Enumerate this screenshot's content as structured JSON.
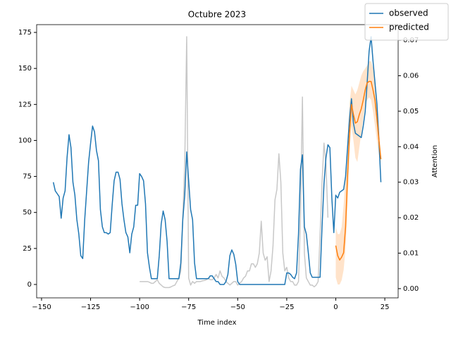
{
  "chart_data": {
    "type": "line",
    "title": "Octubre 2023",
    "xlabel": "Time index",
    "y2label": "Attention",
    "xlim": [
      -152.5,
      31.8
    ],
    "ylim": [
      -9.3,
      180.4
    ],
    "y2lim": [
      -0.0026,
      0.0744
    ],
    "xticks": [
      {
        "value": -150,
        "label": "−150"
      },
      {
        "value": -125,
        "label": "−125"
      },
      {
        "value": -100,
        "label": "−100"
      },
      {
        "value": -75,
        "label": "−75"
      },
      {
        "value": -50,
        "label": "−50"
      },
      {
        "value": -25,
        "label": "−25"
      },
      0,
      25
    ],
    "yticks": [
      0,
      25,
      50,
      75,
      100,
      125,
      150,
      175
    ],
    "y2ticks": [
      {
        "value": 0,
        "label": "0.00"
      },
      {
        "value": 0.01,
        "label": "0.01"
      },
      {
        "value": 0.02,
        "label": "0.02"
      },
      {
        "value": 0.03,
        "label": "0.03"
      },
      {
        "value": 0.04,
        "label": "0.04"
      },
      {
        "value": 0.05,
        "label": "0.05"
      },
      {
        "value": 0.06,
        "label": "0.06"
      },
      {
        "value": 0.07,
        "label": "0.07"
      }
    ],
    "legend": "upper right",
    "attention": {
      "axis": "y2",
      "color": "#c8c8c8",
      "x": [
        -100,
        -99,
        -98,
        -97,
        -96,
        -95,
        -94,
        -93,
        -92,
        -91,
        -90,
        -89,
        -88,
        -87,
        -86,
        -85,
        -84,
        -83,
        -82,
        -81,
        -80,
        -79,
        -78,
        -77,
        -76,
        -75,
        -74,
        -73,
        -72,
        -71,
        -70,
        -69,
        -68,
        -67,
        -66,
        -65,
        -64,
        -63,
        -62,
        -61,
        -60,
        -59,
        -58,
        -57,
        -56,
        -55,
        -54,
        -53,
        -52,
        -51,
        -50,
        -49,
        -48,
        -47,
        -46,
        -45,
        -44,
        -43,
        -42,
        -41,
        -40,
        -39,
        -38,
        -37,
        -36,
        -35,
        -34,
        -33,
        -32,
        -31,
        -30,
        -29,
        -28,
        -27,
        -26,
        -25,
        -24,
        -23,
        -22,
        -21,
        -20,
        -19,
        -18,
        -17,
        -16,
        -15,
        -14,
        -13,
        -12,
        -11,
        -10,
        -9,
        -8,
        -7,
        -6,
        -5,
        -4
      ],
      "values": [
        0.002,
        0.002,
        0.002,
        0.002,
        0.002,
        0.0018,
        0.0015,
        0.0015,
        0.002,
        0.0025,
        0.0015,
        0.001,
        0.0005,
        0.0003,
        0.0003,
        0.0003,
        0.0005,
        0.0008,
        0.001,
        0.002,
        0.003,
        0.005,
        0.02,
        0.035,
        0.071,
        0.003,
        0.001,
        0.002,
        0.0015,
        0.002,
        0.002,
        0.002,
        0.0022,
        0.0023,
        0.0025,
        0.003,
        0.0025,
        0.0025,
        0.003,
        0.004,
        0.003,
        0.005,
        0.0035,
        0.003,
        0.002,
        0.0015,
        0.001,
        0.0015,
        0.002,
        0.002,
        0.001,
        0.0015,
        0.002,
        0.003,
        0.0035,
        0.005,
        0.005,
        0.007,
        0.007,
        0.006,
        0.007,
        0.01,
        0.019,
        0.01,
        0.008,
        0.009,
        0.002,
        0.005,
        0.012,
        0.025,
        0.028,
        0.038,
        0.03,
        0.01,
        0.005,
        0.006,
        0.003,
        0.002,
        0.002,
        0.001,
        0.001,
        0.002,
        0.02,
        0.054,
        0.01,
        0.003,
        0.002,
        0.001,
        0.001,
        0.0005,
        0.001,
        0.002,
        0.015,
        0.03,
        0.041,
        0.035,
        0.02
      ]
    },
    "series": [
      {
        "name": "observed",
        "color": "#1f77b4",
        "x": [
          -144,
          -143,
          -142,
          -141,
          -140,
          -139,
          -138,
          -137,
          -136,
          -135,
          -134,
          -133,
          -132,
          -131,
          -130,
          -129,
          -128,
          -127,
          -126,
          -125,
          -124,
          -123,
          -122,
          -121,
          -120,
          -119,
          -118,
          -117,
          -116,
          -115,
          -114,
          -113,
          -112,
          -111,
          -110,
          -109,
          -108,
          -107,
          -106,
          -105,
          -104,
          -103,
          -102,
          -101,
          -100,
          -99,
          -98,
          -97,
          -96,
          -95,
          -94,
          -93,
          -92,
          -91,
          -90,
          -89,
          -88,
          -87,
          -86,
          -85,
          -84,
          -83,
          -82,
          -81,
          -80,
          -79,
          -78,
          -77,
          -76,
          -75,
          -74,
          -73,
          -72,
          -71,
          -70,
          -69,
          -68,
          -67,
          -66,
          -65,
          -64,
          -63,
          -62,
          -61,
          -60,
          -59,
          -58,
          -57,
          -56,
          -55,
          -54,
          -53,
          -52,
          -51,
          -50,
          -49,
          -48,
          -47,
          -46,
          -45,
          -44,
          -43,
          -42,
          -41,
          -40,
          -39,
          -38,
          -37,
          -36,
          -35,
          -34,
          -33,
          -32,
          -31,
          -30,
          -29,
          -28,
          -27,
          -26,
          -25,
          -24,
          -23,
          -22,
          -21,
          -20,
          -19,
          -18,
          -17,
          -16,
          -15,
          -14,
          -13,
          -12,
          -11,
          -10,
          -9,
          -8,
          -7,
          -6,
          -5,
          -4,
          -3,
          -2,
          -1,
          0,
          1,
          2,
          3,
          4,
          5,
          6,
          7,
          8,
          9,
          10,
          11,
          12,
          13,
          14,
          15,
          16,
          17,
          18,
          19,
          20,
          21,
          22,
          23
        ],
        "values": [
          71,
          65,
          63,
          61,
          46,
          60,
          65,
          88,
          104,
          95,
          71,
          62,
          45,
          35,
          20,
          18,
          45,
          65,
          85,
          98,
          110,
          106,
          93,
          86,
          52,
          40,
          36,
          36,
          35,
          36,
          55,
          72,
          78,
          78,
          73,
          56,
          45,
          36,
          33,
          22,
          35,
          40,
          55,
          55,
          77,
          75,
          72,
          56,
          22,
          12,
          4,
          4,
          4,
          4,
          20,
          42,
          51,
          45,
          30,
          4,
          4,
          4,
          4,
          4,
          4,
          15,
          45,
          62,
          92,
          72,
          52,
          45,
          15,
          4,
          4,
          4,
          4,
          4,
          4,
          4,
          6,
          6,
          4,
          2,
          2,
          0,
          0,
          0,
          2,
          7,
          20,
          24,
          21,
          14,
          2,
          0,
          0,
          0,
          0,
          0,
          0,
          0,
          0,
          0,
          0,
          0,
          0,
          0,
          0,
          0,
          0,
          0,
          0,
          0,
          0,
          0,
          0,
          0,
          0,
          8,
          8,
          7,
          5,
          4,
          8,
          35,
          80,
          90,
          40,
          35,
          22,
          8,
          5,
          5,
          5,
          5,
          5,
          40,
          70,
          88,
          97,
          95,
          60,
          36,
          62,
          60,
          64,
          65,
          66,
          75,
          95,
          115,
          129,
          112,
          105,
          104,
          103,
          102,
          110,
          120,
          140,
          162,
          172,
          155,
          140,
          125,
          100,
          71
        ]
      },
      {
        "name": "predicted",
        "color": "#ff7f0e",
        "x": [
          0,
          1,
          2,
          3,
          4,
          5,
          6,
          7,
          8,
          9,
          10,
          11,
          12,
          13,
          14,
          15,
          16,
          17,
          18,
          19,
          20,
          21,
          22,
          23
        ],
        "values": [
          27,
          20,
          17,
          19,
          22,
          40,
          75,
          105,
          125,
          118,
          112,
          113,
          118,
          122,
          128,
          135,
          140,
          141,
          141,
          135,
          128,
          115,
          100,
          87
        ],
        "lower": [
          5,
          0,
          0,
          3,
          10,
          25,
          55,
          90,
          110,
          100,
          88,
          85,
          95,
          105,
          115,
          125,
          128,
          130,
          128,
          120,
          110,
          100,
          90,
          84
        ],
        "upper": [
          40,
          35,
          35,
          40,
          55,
          75,
          100,
          125,
          138,
          135,
          132,
          135,
          140,
          145,
          148,
          150,
          152,
          155,
          155,
          150,
          140,
          130,
          110,
          90
        ]
      }
    ]
  }
}
